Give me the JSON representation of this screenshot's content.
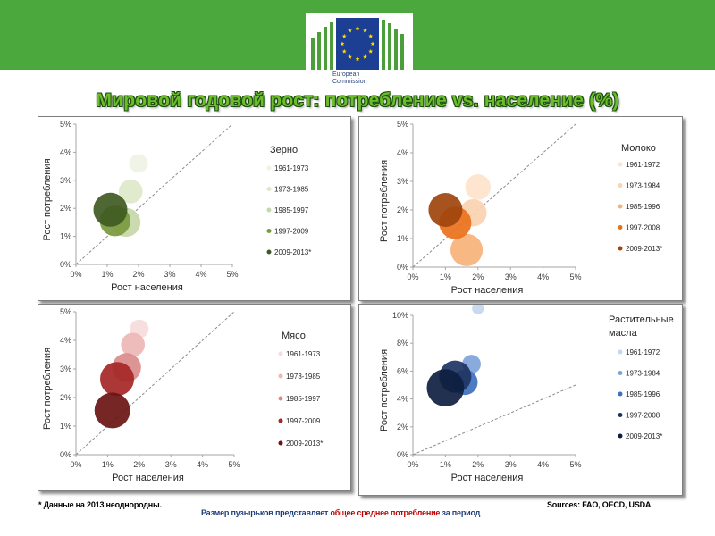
{
  "header": {
    "logo_lines": [
      "European",
      "Commission"
    ],
    "colors": {
      "band": "#4aa83c",
      "flag": "#1d3f93",
      "star": "#ffdd00"
    }
  },
  "title": "Мировой годовой рост: потребление vs. население (%)",
  "footnotes": {
    "left": "* Данные на 2013 неоднородны.",
    "center_part1": "Размер пузырьков представляет ",
    "center_red": "общее среднее потребление",
    "center_part2": " за период",
    "right": "Sources: FAO, OECD, USDA"
  },
  "chart_data": [
    {
      "type": "scatter",
      "title": "Зерно",
      "xlabel": "Рост населения",
      "ylabel": "Рост потребления",
      "xlim": [
        0,
        5
      ],
      "ylim": [
        0,
        5
      ],
      "xticks": [
        "0%",
        "1%",
        "2%",
        "3%",
        "4%",
        "5%"
      ],
      "yticks": [
        "0%",
        "1%",
        "2%",
        "3%",
        "4%",
        "5%"
      ],
      "diagonal": true,
      "legend_position": "right",
      "series": [
        {
          "name": "1961-1973",
          "color": "#eef3e4",
          "x": 2.0,
          "y": 3.6,
          "size": 0.55
        },
        {
          "name": "1973-1985",
          "color": "#dde8c9",
          "x": 1.75,
          "y": 2.6,
          "size": 0.7
        },
        {
          "name": "1985-1997",
          "color": "#c6d8a9",
          "x": 1.6,
          "y": 1.5,
          "size": 0.85
        },
        {
          "name": "1997-2009",
          "color": "#7a9a3e",
          "x": 1.25,
          "y": 1.55,
          "size": 0.9
        },
        {
          "name": "2009-2013*",
          "color": "#3f5a22",
          "x": 1.1,
          "y": 1.95,
          "size": 1.0
        }
      ]
    },
    {
      "type": "scatter",
      "title": "Молоко",
      "xlabel": "Рост населения",
      "ylabel": "Рост потребления",
      "xlim": [
        0,
        5
      ],
      "ylim": [
        0,
        5
      ],
      "xticks": [
        "0%",
        "1%",
        "2%",
        "3%",
        "4%",
        "5%"
      ],
      "yticks": [
        "0%",
        "1%",
        "2%",
        "3%",
        "4%",
        "5%"
      ],
      "diagonal": true,
      "legend_position": "right",
      "series": [
        {
          "name": "1961-1972",
          "color": "#fde3cc",
          "x": 2.0,
          "y": 2.8,
          "size": 0.75
        },
        {
          "name": "1973-1984",
          "color": "#fbd3b0",
          "x": 1.85,
          "y": 1.9,
          "size": 0.8
        },
        {
          "name": "1985-1996",
          "color": "#f6b27a",
          "x": 1.65,
          "y": 0.6,
          "size": 0.95
        },
        {
          "name": "1997-2008",
          "color": "#e9711b",
          "x": 1.3,
          "y": 1.55,
          "size": 0.95
        },
        {
          "name": "2009-2013*",
          "color": "#a0440c",
          "x": 1.0,
          "y": 2.0,
          "size": 1.0
        }
      ]
    },
    {
      "type": "scatter",
      "title": "Мясо",
      "xlabel": "Рост населения",
      "ylabel": "Рост потребления",
      "xlim": [
        0,
        5
      ],
      "ylim": [
        0,
        5
      ],
      "xticks": [
        "0%",
        "1%",
        "2%",
        "3%",
        "4%",
        "5%"
      ],
      "yticks": [
        "0%",
        "1%",
        "2%",
        "3%",
        "4%",
        "5%"
      ],
      "diagonal": true,
      "legend_position": "right",
      "series": [
        {
          "name": "1961-1973",
          "color": "#f7dcdc",
          "x": 2.0,
          "y": 4.4,
          "size": 0.55
        },
        {
          "name": "1973-1985",
          "color": "#eeb6b6",
          "x": 1.8,
          "y": 3.85,
          "size": 0.7
        },
        {
          "name": "1985-1997",
          "color": "#d98b8b",
          "x": 1.6,
          "y": 3.05,
          "size": 0.85
        },
        {
          "name": "1997-2009",
          "color": "#a52626",
          "x": 1.3,
          "y": 2.65,
          "size": 1.0
        },
        {
          "name": "2009-2013*",
          "color": "#6b1414",
          "x": 1.15,
          "y": 1.55,
          "size": 1.05
        }
      ]
    },
    {
      "type": "scatter",
      "title": "Растительные масла",
      "xlabel": "Рост населения",
      "ylabel": "Рост потребления",
      "xlim": [
        0,
        5
      ],
      "ylim": [
        0,
        10
      ],
      "xticks": [
        "0%",
        "1%",
        "2%",
        "3%",
        "4%",
        "5%"
      ],
      "yticks": [
        "0%",
        "2%",
        "4%",
        "6%",
        "8%",
        "10%"
      ],
      "diagonal": true,
      "legend_position": "right",
      "series": [
        {
          "name": "1961-1972",
          "color": "#c4d7ef",
          "x": 2.0,
          "y": 10.5,
          "size": 0.35
        },
        {
          "name": "1973-1984",
          "color": "#7ea3d9",
          "x": 1.8,
          "y": 6.5,
          "size": 0.55
        },
        {
          "name": "1985-1996",
          "color": "#3f6fbf",
          "x": 1.6,
          "y": 5.2,
          "size": 0.75
        },
        {
          "name": "1997-2008",
          "color": "#1d3462",
          "x": 1.3,
          "y": 5.6,
          "size": 0.95
        },
        {
          "name": "2009-2013*",
          "color": "#0e2040",
          "x": 1.0,
          "y": 4.8,
          "size": 1.1
        }
      ]
    }
  ]
}
